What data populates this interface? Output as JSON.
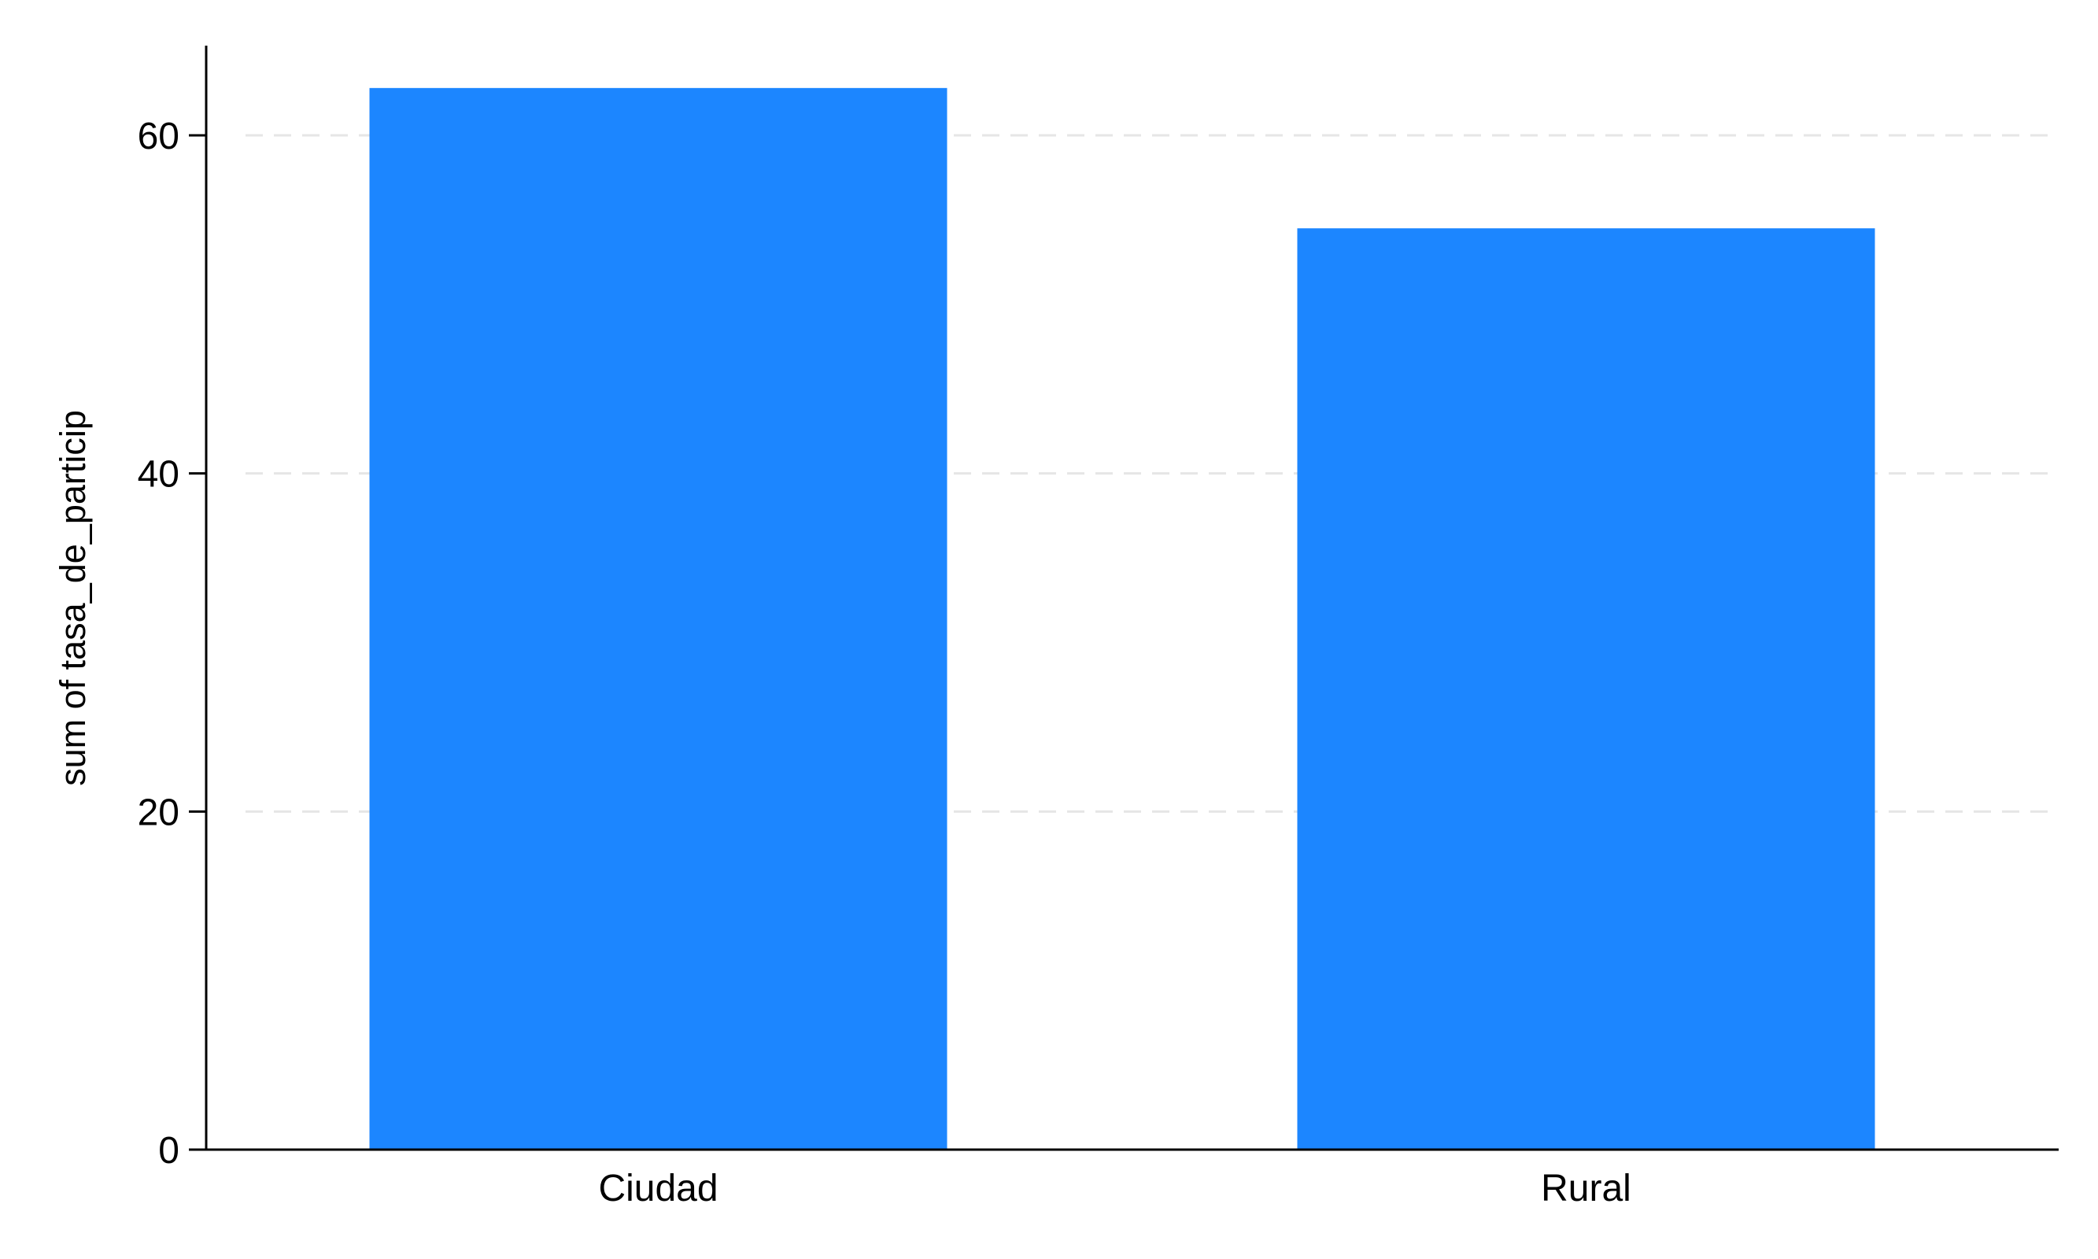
{
  "chart_data": {
    "type": "bar",
    "categories": [
      "Ciudad",
      "Rural"
    ],
    "series": [
      {
        "values": [
          62.8,
          54.5
        ]
      }
    ],
    "title": "",
    "xlabel": "",
    "ylabel": "sum of tasa_de_particip",
    "ylim": [
      0,
      65
    ],
    "yticks": [
      0,
      20,
      40,
      60
    ],
    "grid": true,
    "legend": "none",
    "colors": {
      "bar": "#1c86ff",
      "axis": "#000000",
      "grid": "#e6e6e6",
      "background": "#ffffff"
    }
  }
}
